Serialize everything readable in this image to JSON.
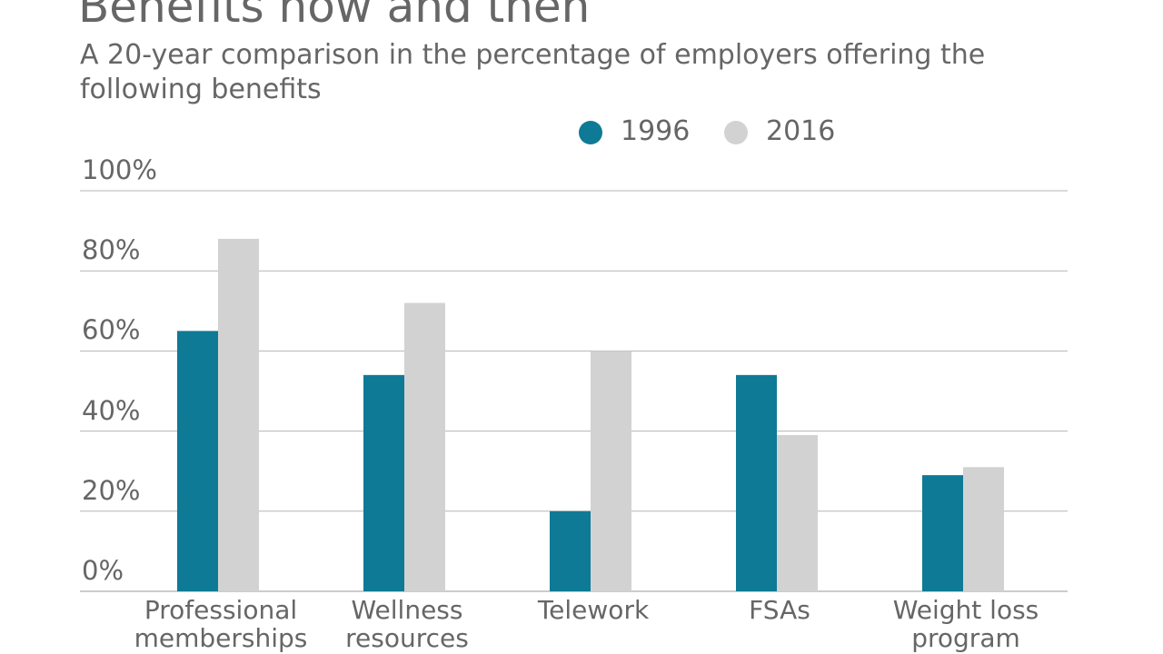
{
  "chart_data": {
    "type": "bar",
    "title": "Benefits now and then",
    "subtitle": "A 20-year comparison in the percentage of employers offering the following benefits",
    "categories": [
      "Professional memberships",
      "Wellness resources",
      "Telework",
      "FSAs",
      "Weight loss program"
    ],
    "series": [
      {
        "name": "1996",
        "color": "#0e7a96",
        "values": [
          65,
          54,
          20,
          54,
          29
        ]
      },
      {
        "name": "2016",
        "color": "#d3d2d3",
        "values": [
          88,
          72,
          60,
          39,
          31
        ]
      }
    ],
    "ylim": [
      0,
      100
    ],
    "yticks": [
      {
        "value": 0,
        "label": "0%"
      },
      {
        "value": 20,
        "label": "20%"
      },
      {
        "value": 40,
        "label": "40%"
      },
      {
        "value": 60,
        "label": "60%"
      },
      {
        "value": 80,
        "label": "80%"
      },
      {
        "value": 100,
        "label": "100%"
      }
    ],
    "grid": true,
    "legend": "top"
  }
}
